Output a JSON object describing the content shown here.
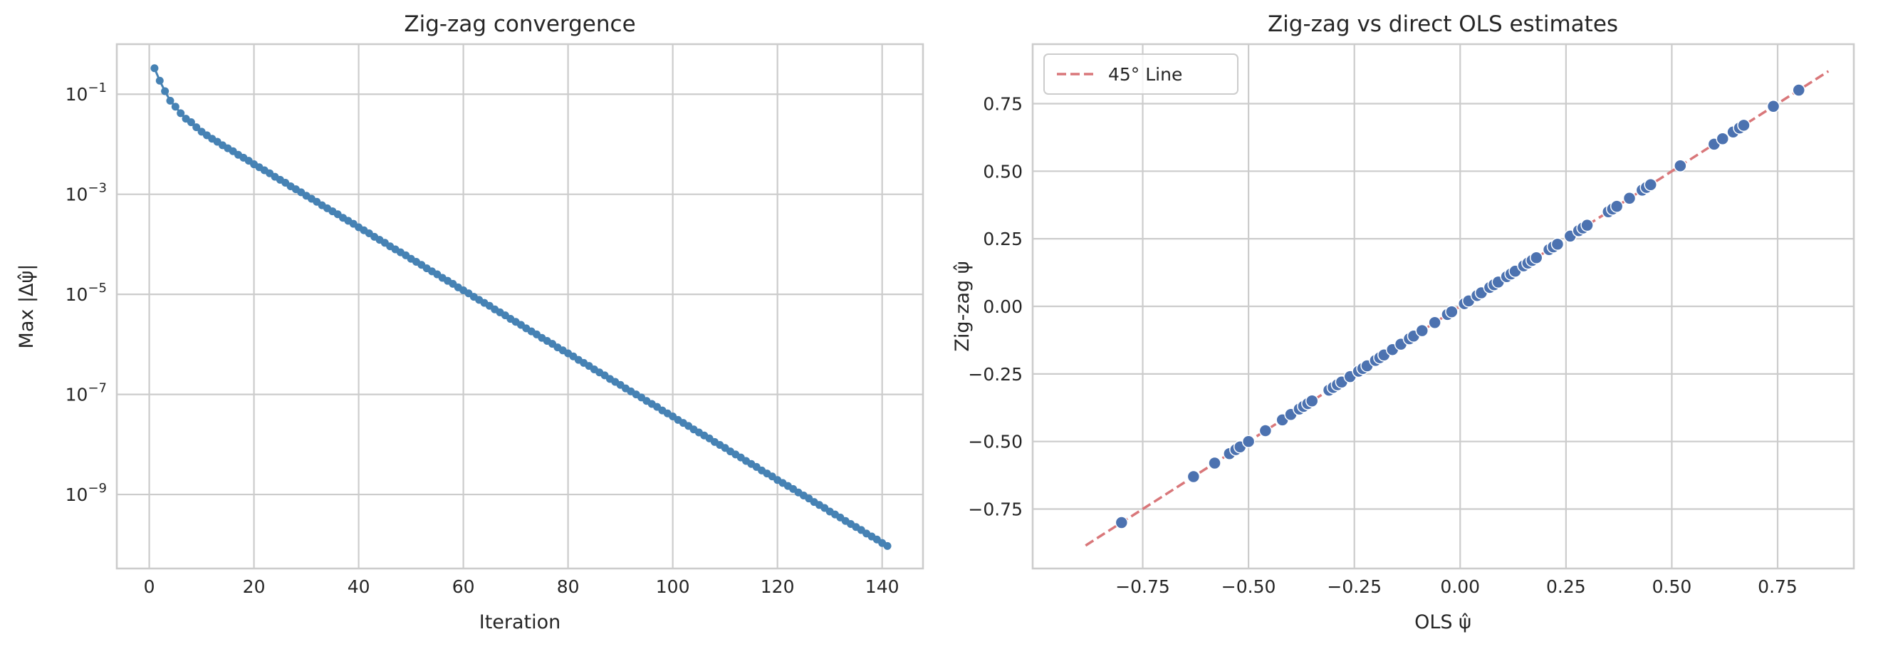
{
  "chart_data": [
    {
      "type": "line",
      "title": "Zig-zag convergence",
      "xlabel": "Iteration",
      "ylabel": "Max |Δψ̂|",
      "yscale": "log",
      "xlim": [
        -6.2,
        147.8
      ],
      "ylim_log10": [
        -10.48,
        0.0
      ],
      "grid": true,
      "color": "#4682b4",
      "marker": "circle",
      "xticks": [
        0,
        20,
        40,
        60,
        80,
        100,
        120,
        140
      ],
      "xtick_labels": [
        "0",
        "20",
        "40",
        "60",
        "80",
        "100",
        "120",
        "140"
      ],
      "yticks_log10": [
        -1,
        -3,
        -5,
        -7,
        -9
      ],
      "ytick_labels": [
        {
          "base": "10",
          "exp": "−1"
        },
        {
          "base": "10",
          "exp": "−3"
        },
        {
          "base": "10",
          "exp": "−5"
        },
        {
          "base": "10",
          "exp": "−7"
        },
        {
          "base": "10",
          "exp": "−9"
        }
      ],
      "x_start": 1,
      "x_end": 141,
      "y_log10": [
        -0.48,
        -0.73,
        -0.94,
        -1.13,
        -1.25,
        -1.38,
        -1.49,
        -1.56,
        -1.66,
        -1.75,
        -1.82,
        -1.89,
        -1.95,
        -2.02,
        -2.08,
        -2.14,
        -2.21,
        -2.27,
        -2.33,
        -2.4,
        -2.46,
        -2.52,
        -2.58,
        -2.65,
        -2.71,
        -2.77,
        -2.84,
        -2.9,
        -2.96,
        -3.03,
        -3.09,
        -3.15,
        -3.22,
        -3.28,
        -3.34,
        -3.4,
        -3.47,
        -3.53,
        -3.59,
        -3.66,
        -3.72,
        -3.78,
        -3.85,
        -3.91,
        -3.97,
        -4.04,
        -4.1,
        -4.16,
        -4.22,
        -4.29,
        -4.35,
        -4.41,
        -4.48,
        -4.54,
        -4.6,
        -4.67,
        -4.73,
        -4.79,
        -4.86,
        -4.92,
        -4.98,
        -5.05,
        -5.11,
        -5.17,
        -5.23,
        -5.3,
        -5.36,
        -5.42,
        -5.49,
        -5.55,
        -5.61,
        -5.68,
        -5.74,
        -5.8,
        -5.87,
        -5.93,
        -5.99,
        -6.06,
        -6.12,
        -6.18,
        -6.24,
        -6.31,
        -6.37,
        -6.43,
        -6.5,
        -6.56,
        -6.62,
        -6.69,
        -6.75,
        -6.81,
        -6.88,
        -6.94,
        -7.0,
        -7.06,
        -7.13,
        -7.19,
        -7.25,
        -7.32,
        -7.38,
        -7.44,
        -7.51,
        -7.57,
        -7.63,
        -7.7,
        -7.76,
        -7.82,
        -7.88,
        -7.95,
        -8.01,
        -8.07,
        -8.14,
        -8.2,
        -8.26,
        -8.33,
        -8.39,
        -8.45,
        -8.52,
        -8.58,
        -8.64,
        -8.71,
        -8.77,
        -8.83,
        -8.89,
        -8.96,
        -9.02,
        -9.08,
        -9.15,
        -9.21,
        -9.27,
        -9.34,
        -9.4,
        -9.46,
        -9.53,
        -9.59,
        -9.65,
        -9.71,
        -9.78,
        -9.84,
        -9.9,
        -9.97,
        -10.03
      ]
    },
    {
      "type": "scatter",
      "title": "Zig-zag vs direct OLS estimates",
      "xlabel": "OLS ψ̂",
      "ylabel": "Zig-zag ψ̂",
      "xlim": [
        -1.01,
        0.93
      ],
      "ylim": [
        -0.97,
        0.97
      ],
      "grid": true,
      "color": "#4c72b0",
      "xticks": [
        -0.75,
        -0.5,
        -0.25,
        0,
        0.25,
        0.5,
        0.75
      ],
      "xtick_labels": [
        "−0.75",
        "−0.50",
        "−0.25",
        "0.00",
        "0.25",
        "0.50",
        "0.75"
      ],
      "yticks": [
        -0.75,
        -0.5,
        -0.25,
        0,
        0.25,
        0.5,
        0.75
      ],
      "ytick_labels": [
        "−0.75",
        "−0.50",
        "−0.25",
        "0.00",
        "0.25",
        "0.50",
        "0.75"
      ],
      "reference_line": {
        "label": "45° Line",
        "from": -0.885,
        "to": 0.87,
        "color": "#d9777a",
        "style": "dashed"
      },
      "legend": {
        "position": "top-left",
        "entries": [
          "45° Line"
        ]
      },
      "points": [
        -0.8,
        -0.63,
        -0.58,
        -0.545,
        -0.53,
        -0.52,
        -0.5,
        -0.46,
        -0.42,
        -0.4,
        -0.38,
        -0.37,
        -0.36,
        -0.35,
        -0.31,
        -0.3,
        -0.29,
        -0.28,
        -0.26,
        -0.24,
        -0.23,
        -0.22,
        -0.2,
        -0.19,
        -0.18,
        -0.16,
        -0.14,
        -0.12,
        -0.11,
        -0.09,
        -0.06,
        -0.03,
        -0.02,
        0.01,
        0.02,
        0.04,
        0.05,
        0.07,
        0.08,
        0.09,
        0.11,
        0.12,
        0.13,
        0.15,
        0.16,
        0.17,
        0.18,
        0.21,
        0.22,
        0.23,
        0.26,
        0.28,
        0.29,
        0.3,
        0.35,
        0.36,
        0.37,
        0.4,
        0.43,
        0.44,
        0.45,
        0.52,
        0.6,
        0.62,
        0.645,
        0.66,
        0.67,
        0.74,
        0.8
      ]
    }
  ]
}
